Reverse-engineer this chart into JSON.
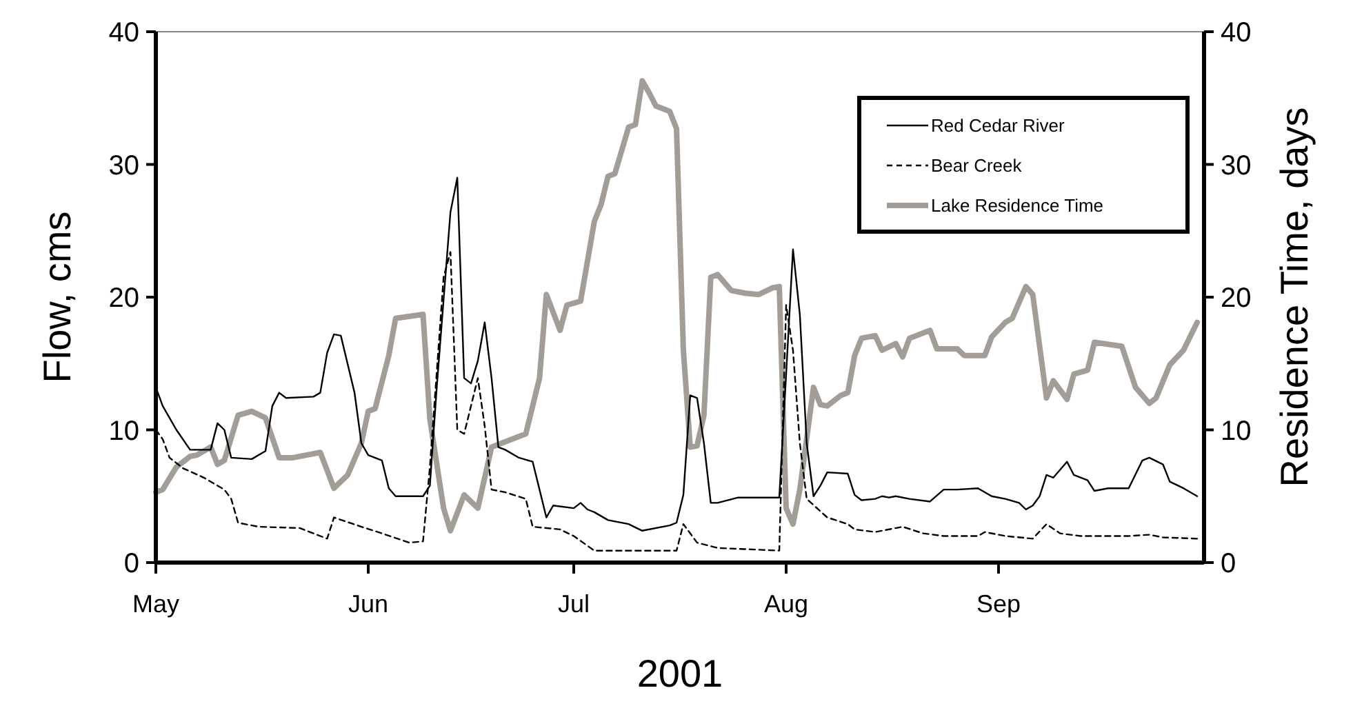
{
  "chart_data": {
    "type": "line",
    "xlabel": "2001",
    "ylabel": "Flow, cms",
    "y2label": "Residence Time, days",
    "xlim": [
      "2001-05-01",
      "2001-10-01"
    ],
    "xticks": [
      {
        "value": "2001-05-01",
        "label": "May"
      },
      {
        "value": "2001-06-01",
        "label": "Jun"
      },
      {
        "value": "2001-07-01",
        "label": "Jul"
      },
      {
        "value": "2001-08-01",
        "label": "Aug"
      },
      {
        "value": "2001-09-01",
        "label": "Sep"
      }
    ],
    "ylim": [
      0,
      40
    ],
    "yticks": [
      0,
      10,
      20,
      30,
      40
    ],
    "y2lim": [
      0,
      40
    ],
    "y2ticks": [
      0,
      10,
      20,
      30,
      40
    ],
    "legend": "top right",
    "grid": false,
    "series": [
      {
        "name": "Red Cedar River",
        "color": "#000000",
        "line_style": "solid",
        "x": [
          "2001-05-01",
          "2001-05-02",
          "2001-05-04",
          "2001-05-06",
          "2001-05-09",
          "2001-05-10",
          "2001-05-11",
          "2001-05-12",
          "2001-05-15",
          "2001-05-17",
          "2001-05-18",
          "2001-05-19",
          "2001-05-20",
          "2001-05-24",
          "2001-05-25",
          "2001-05-26",
          "2001-05-27",
          "2001-05-28",
          "2001-05-30",
          "2001-05-31",
          "2001-06-01",
          "2001-06-03",
          "2001-06-04",
          "2001-06-05",
          "2001-06-09",
          "2001-06-10",
          "2001-06-11",
          "2001-06-13",
          "2001-06-14",
          "2001-06-15",
          "2001-06-16",
          "2001-06-17",
          "2001-06-18",
          "2001-06-19",
          "2001-06-20",
          "2001-06-21",
          "2001-06-23",
          "2001-06-25",
          "2001-06-26",
          "2001-06-27",
          "2001-06-28",
          "2001-07-01",
          "2001-07-02",
          "2001-07-03",
          "2001-07-04",
          "2001-07-06",
          "2001-07-09",
          "2001-07-11",
          "2001-07-15",
          "2001-07-16",
          "2001-07-17",
          "2001-07-18",
          "2001-07-19",
          "2001-07-20",
          "2001-07-21",
          "2001-07-22",
          "2001-07-25",
          "2001-07-31",
          "2001-08-01",
          "2001-08-02",
          "2001-08-03",
          "2001-08-04",
          "2001-08-05",
          "2001-08-06",
          "2001-08-07",
          "2001-08-10",
          "2001-08-11",
          "2001-08-12",
          "2001-08-14",
          "2001-08-15",
          "2001-08-16",
          "2001-08-17",
          "2001-08-19",
          "2001-08-22",
          "2001-08-24",
          "2001-08-26",
          "2001-08-29",
          "2001-08-31",
          "2001-09-02",
          "2001-09-04",
          "2001-09-05",
          "2001-09-06",
          "2001-09-07",
          "2001-09-08",
          "2001-09-09",
          "2001-09-11",
          "2001-09-12",
          "2001-09-14",
          "2001-09-15",
          "2001-09-17",
          "2001-09-20",
          "2001-09-22",
          "2001-09-23",
          "2001-09-25",
          "2001-09-26",
          "2001-09-28",
          "2001-09-30"
        ],
        "values": [
          13.2,
          11.8,
          10.0,
          8.5,
          8.5,
          10.5,
          10.0,
          7.9,
          7.8,
          8.4,
          11.8,
          12.8,
          12.4,
          12.5,
          12.8,
          15.8,
          17.2,
          17.1,
          12.8,
          9.0,
          8.1,
          7.7,
          5.6,
          5.0,
          5.0,
          5.8,
          13.2,
          26.4,
          29.0,
          13.9,
          13.5,
          15.2,
          18.1,
          13.9,
          8.7,
          8.5,
          7.9,
          7.6,
          5.5,
          3.4,
          4.3,
          4.1,
          4.5,
          4.0,
          3.8,
          3.2,
          2.9,
          2.4,
          2.8,
          3.0,
          5.1,
          12.6,
          12.4,
          9.0,
          4.5,
          4.5,
          4.9,
          4.9,
          14.2,
          23.6,
          18.7,
          9.0,
          5.0,
          5.8,
          6.8,
          6.7,
          5.1,
          4.7,
          4.8,
          5.0,
          4.9,
          5.0,
          4.8,
          4.6,
          5.5,
          5.5,
          5.6,
          5.0,
          4.8,
          4.5,
          4.0,
          4.3,
          5.0,
          6.6,
          6.4,
          7.6,
          6.6,
          6.2,
          5.4,
          5.6,
          5.6,
          7.7,
          7.9,
          7.4,
          6.1,
          5.6,
          5.0
        ]
      },
      {
        "name": "Bear Creek",
        "color": "#000000",
        "line_style": "dashed",
        "x": [
          "2001-05-01",
          "2001-05-02",
          "2001-05-03",
          "2001-05-05",
          "2001-05-08",
          "2001-05-11",
          "2001-05-12",
          "2001-05-13",
          "2001-05-16",
          "2001-05-22",
          "2001-05-24",
          "2001-05-26",
          "2001-05-27",
          "2001-05-31",
          "2001-06-03",
          "2001-06-07",
          "2001-06-09",
          "2001-06-10",
          "2001-06-12",
          "2001-06-13",
          "2001-06-14",
          "2001-06-15",
          "2001-06-17",
          "2001-06-18",
          "2001-06-19",
          "2001-06-21",
          "2001-06-24",
          "2001-06-25",
          "2001-06-29",
          "2001-07-01",
          "2001-07-04",
          "2001-07-16",
          "2001-07-17",
          "2001-07-19",
          "2001-07-22",
          "2001-07-31",
          "2001-08-01",
          "2001-08-02",
          "2001-08-03",
          "2001-08-04",
          "2001-08-07",
          "2001-08-10",
          "2001-08-11",
          "2001-08-14",
          "2001-08-18",
          "2001-08-21",
          "2001-08-24",
          "2001-08-29",
          "2001-08-30",
          "2001-09-02",
          "2001-09-06",
          "2001-09-08",
          "2001-09-10",
          "2001-09-13",
          "2001-09-20",
          "2001-09-23",
          "2001-09-25",
          "2001-09-30"
        ],
        "values": [
          10.0,
          9.3,
          7.9,
          7.1,
          6.4,
          5.5,
          4.8,
          3.0,
          2.7,
          2.6,
          2.2,
          1.8,
          3.4,
          2.7,
          2.2,
          1.5,
          1.6,
          7.2,
          21.5,
          23.4,
          10.0,
          9.7,
          13.9,
          10.3,
          5.5,
          5.3,
          4.8,
          2.7,
          2.5,
          2.0,
          0.9,
          0.9,
          2.9,
          1.5,
          1.1,
          0.9,
          19.4,
          16.0,
          9.0,
          4.8,
          3.4,
          2.9,
          2.5,
          2.3,
          2.7,
          2.2,
          2.0,
          2.0,
          2.3,
          2.0,
          1.8,
          2.9,
          2.2,
          2.0,
          2.0,
          2.1,
          1.9,
          1.8
        ]
      },
      {
        "name": "Lake Residence Time",
        "color": "#a39d98",
        "line_style": "solid",
        "axis": "y2",
        "x": [
          "2001-05-01",
          "2001-05-02",
          "2001-05-04",
          "2001-05-06",
          "2001-05-07",
          "2001-05-09",
          "2001-05-10",
          "2001-05-11",
          "2001-05-13",
          "2001-05-15",
          "2001-05-17",
          "2001-05-19",
          "2001-05-21",
          "2001-05-25",
          "2001-05-27",
          "2001-05-29",
          "2001-05-31",
          "2001-06-01",
          "2001-06-02",
          "2001-06-04",
          "2001-06-05",
          "2001-06-09",
          "2001-06-10",
          "2001-06-12",
          "2001-06-13",
          "2001-06-15",
          "2001-06-17",
          "2001-06-19",
          "2001-06-24",
          "2001-06-26",
          "2001-06-27",
          "2001-06-29",
          "2001-06-30",
          "2001-07-02",
          "2001-07-04",
          "2001-07-05",
          "2001-07-06",
          "2001-07-07",
          "2001-07-09",
          "2001-07-10",
          "2001-07-11",
          "2001-07-12",
          "2001-07-13",
          "2001-07-15",
          "2001-07-16",
          "2001-07-17",
          "2001-07-18",
          "2001-07-19",
          "2001-07-20",
          "2001-07-21",
          "2001-07-22",
          "2001-07-24",
          "2001-07-26",
          "2001-07-28",
          "2001-07-30",
          "2001-07-31",
          "2001-08-01",
          "2001-08-02",
          "2001-08-03",
          "2001-08-05",
          "2001-08-06",
          "2001-08-07",
          "2001-08-09",
          "2001-08-10",
          "2001-08-11",
          "2001-08-12",
          "2001-08-14",
          "2001-08-15",
          "2001-08-17",
          "2001-08-18",
          "2001-08-19",
          "2001-08-22",
          "2001-08-23",
          "2001-08-26",
          "2001-08-27",
          "2001-08-30",
          "2001-08-31",
          "2001-09-02",
          "2001-09-03",
          "2001-09-05",
          "2001-09-06",
          "2001-09-08",
          "2001-09-09",
          "2001-09-11",
          "2001-09-12",
          "2001-09-14",
          "2001-09-15",
          "2001-09-19",
          "2001-09-21",
          "2001-09-23",
          "2001-09-24",
          "2001-09-26",
          "2001-09-28",
          "2001-09-30"
        ],
        "values": [
          5.3,
          5.5,
          7.2,
          8.0,
          8.1,
          8.7,
          7.4,
          7.7,
          11.1,
          11.4,
          10.9,
          7.9,
          7.9,
          8.3,
          5.6,
          6.6,
          9.0,
          11.4,
          11.6,
          15.6,
          18.4,
          18.7,
          10.8,
          4.1,
          2.4,
          5.1,
          4.1,
          8.7,
          9.7,
          13.9,
          20.2,
          17.5,
          19.4,
          19.7,
          25.7,
          27.0,
          29.1,
          29.3,
          32.8,
          33.0,
          36.3,
          35.4,
          34.4,
          34.0,
          32.7,
          16.0,
          8.7,
          8.8,
          11.1,
          21.5,
          21.7,
          20.5,
          20.3,
          20.2,
          20.7,
          20.8,
          4.1,
          2.9,
          5.5,
          13.2,
          11.9,
          11.8,
          12.6,
          12.8,
          15.6,
          16.9,
          17.1,
          16.0,
          16.5,
          15.5,
          16.9,
          17.5,
          16.1,
          16.1,
          15.6,
          15.6,
          17.0,
          18.1,
          18.4,
          20.8,
          20.2,
          12.4,
          13.7,
          12.3,
          14.2,
          14.5,
          16.6,
          16.3,
          13.2,
          12.0,
          12.4,
          14.9,
          16.0,
          18.1
        ]
      }
    ]
  }
}
